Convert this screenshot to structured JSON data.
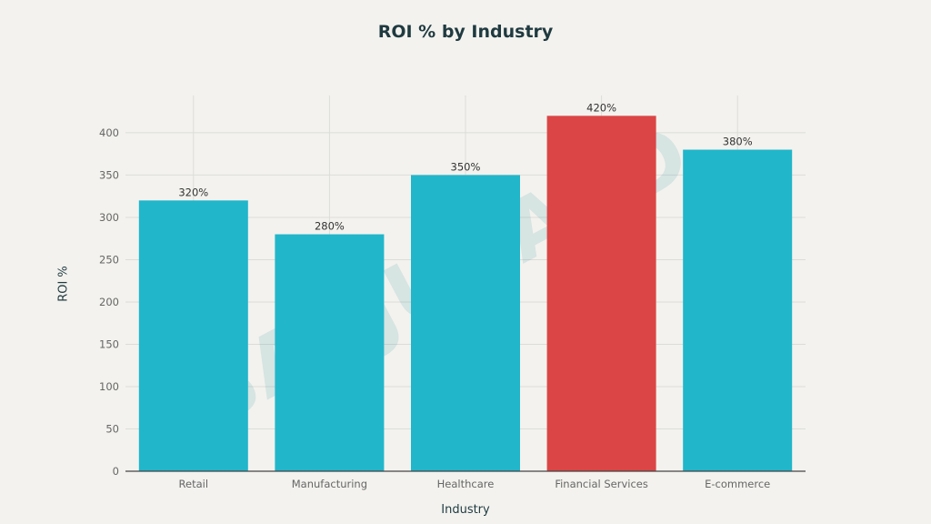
{
  "chart_data": {
    "type": "bar",
    "title": "ROI % by Industry",
    "xlabel": "Industry",
    "ylabel": "ROI %",
    "categories": [
      "Retail",
      "Manufacturing",
      "Healthcare",
      "Financial Services",
      "E-commerce"
    ],
    "values": [
      320,
      280,
      350,
      420,
      380
    ],
    "data_labels": [
      "320%",
      "280%",
      "350%",
      "420%",
      "380%"
    ],
    "bar_colors": [
      "#21b6ca",
      "#21b6ca",
      "#21b6ca",
      "#db4545",
      "#21b6ca"
    ],
    "yticks": [
      0,
      50,
      100,
      150,
      200,
      250,
      300,
      350,
      400
    ],
    "ylim": [
      0,
      444
    ],
    "grid": true,
    "legend": "none"
  },
  "watermark": "SABJUGAAD"
}
